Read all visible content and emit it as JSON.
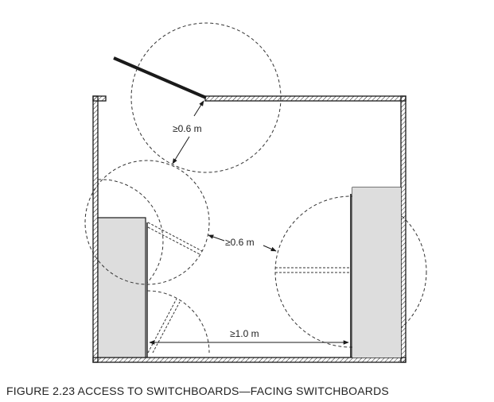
{
  "figure": {
    "caption": "FIGURE  2.23   ACCESS TO SWITCHBOARDS—FACING SWITCHBOARDS"
  },
  "dimensions": {
    "door_clearance": "≥0.6 m",
    "panel_door_clearance": "≥0.6 m",
    "aisle_width": "≥1.0 m"
  },
  "colors": {
    "line": "#1a1a1a",
    "switchboard_fill": "#dddddd",
    "door_leaf": "#1a1a1a"
  }
}
